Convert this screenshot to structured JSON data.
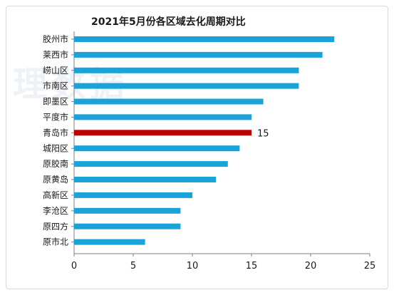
{
  "watermark": "理数据",
  "chart_data": {
    "type": "bar",
    "orientation": "horizontal",
    "title": "2021年5月份各区域去化周期对比",
    "xlabel": "",
    "ylabel": "",
    "xlim": [
      0,
      25
    ],
    "ticks": [
      "0",
      "5",
      "10",
      "15",
      "20",
      "25"
    ],
    "grid": false,
    "legend": "none",
    "categories": [
      "胶州市",
      "莱西市",
      "崂山区",
      "市南区",
      "即墨区",
      "平度市",
      "青岛市",
      "城阳区",
      "原胶南",
      "原黄岛",
      "高新区",
      "李沧区",
      "原四方",
      "原市北"
    ],
    "values": [
      22,
      21,
      19,
      19,
      16,
      15,
      15,
      14,
      13,
      12,
      10,
      9,
      9,
      6
    ],
    "data_labels": [
      {
        "category": "青岛市",
        "text": "15"
      }
    ],
    "highlight": "青岛市",
    "colors": {
      "bar": "#1aa3d9",
      "highlight": "#c00000",
      "axis": "#7f7f7f"
    }
  }
}
